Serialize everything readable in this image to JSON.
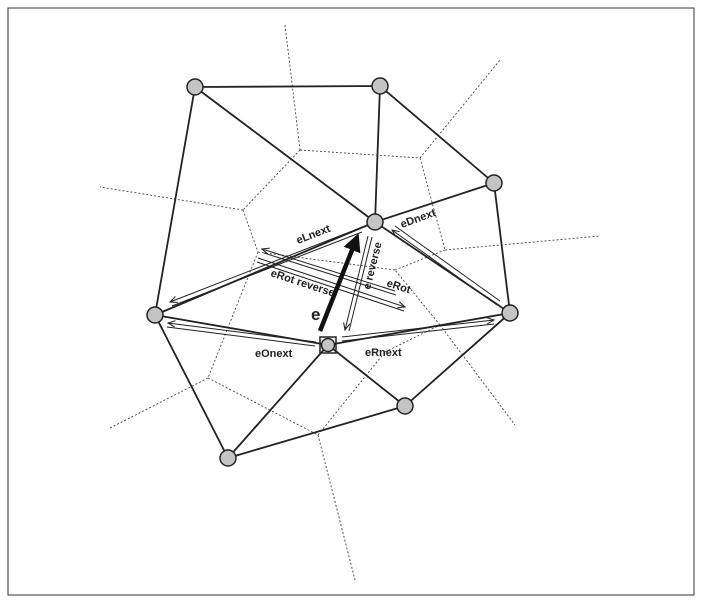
{
  "diagram": {
    "edge_label_main": "e",
    "labels": {
      "lnext": "eLnext",
      "dnext": "eDnext",
      "reverse": "e reverse",
      "rot_reverse": "eRot reverse",
      "rot": "eRot",
      "onext": "eOnext",
      "rnext": "eRnext"
    },
    "colors": {
      "vertex_fill": "#c4c4c4",
      "edge": "#222222",
      "voronoi": "#444444",
      "main_edge": "#111111",
      "border": "#333333"
    }
  }
}
